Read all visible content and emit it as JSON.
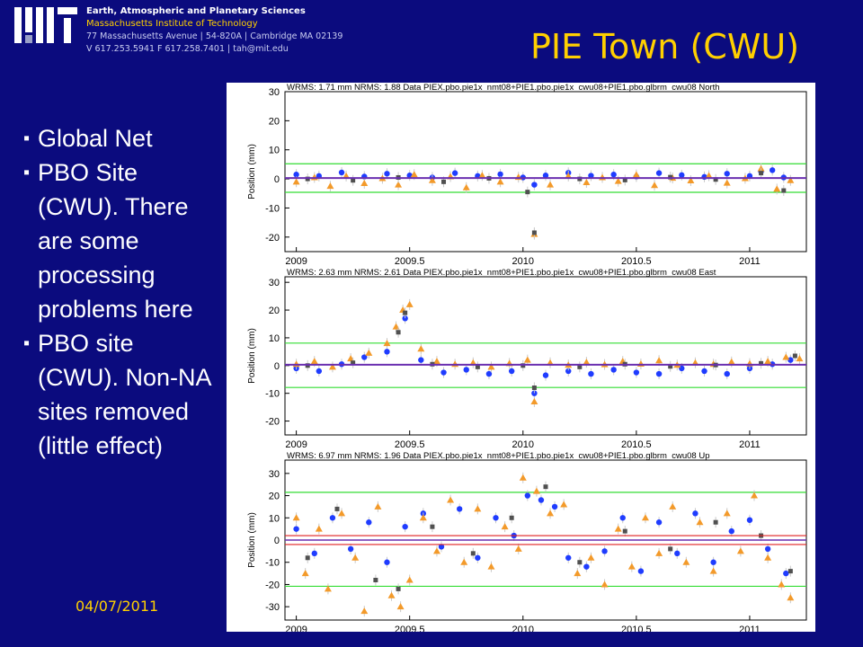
{
  "header": {
    "org": "Earth, Atmospheric and Planetary Sciences",
    "institute": "Massachusetts Institute of Technology",
    "address": "77 Massachusetts Avenue | 54-820A | Cambridge MA 02139",
    "contact": "V 617.253.5941 F 617.258.7401 | tah@mit.edu"
  },
  "title": "PIE Town (CWU)",
  "bullets": [
    "Global Net",
    "PBO Site (CWU). There are some processing problems here",
    "PBO site (CWU). Non-NA sites removed (little effect)"
  ],
  "date": "04/07/2011",
  "colors": {
    "background": "#0b0b7e",
    "title": "#ffd000",
    "series_orange": "#f39a2a",
    "series_blue": "#1f3cff",
    "series_gray": "#505050",
    "band_green": "#33dd33",
    "mean_purple": "#6a2fb0"
  },
  "chart_data": [
    {
      "type": "scatter",
      "header": "WRMS:   1.71 mm NRMS: 1.88 Data PIEX.pbo.pie1x_nmt08+PIE1.pbo.pie1x_cwu08+PIE1.pbo.glbrm_cwu08 North",
      "ylabel": "Position (mm)",
      "xlim": [
        2008.95,
        2011.25
      ],
      "ylim": [
        -25,
        30
      ],
      "yticks": [
        30,
        20,
        10,
        0,
        -10,
        -20
      ],
      "xticks": [
        2009,
        2009.5,
        2010,
        2010.5,
        2011
      ],
      "xtick_labels": [
        "2009",
        "2009.5",
        "2010",
        "2010.5",
        "2011"
      ],
      "band": [
        -4.6,
        5.2
      ],
      "mean": 0.3,
      "series": [
        {
          "color": "blue",
          "x": [
            2009.0,
            2009.1,
            2009.2,
            2009.3,
            2009.4,
            2009.5,
            2009.6,
            2009.7,
            2009.8,
            2009.9,
            2010.0,
            2010.05,
            2010.1,
            2010.2,
            2010.3,
            2010.4,
            2010.5,
            2010.6,
            2010.7,
            2010.8,
            2010.9,
            2011.0,
            2011.05,
            2011.1,
            2011.15
          ],
          "y": [
            1.5,
            1.0,
            2.2,
            0.8,
            1.8,
            1.2,
            0.5,
            2.0,
            1.0,
            1.6,
            0.5,
            -2.0,
            1.2,
            2.1,
            1.1,
            1.5,
            0.8,
            2.0,
            1.3,
            0.7,
            1.8,
            1.0,
            2.5,
            3.0,
            0.5
          ]
        },
        {
          "color": "orange",
          "x": [
            2009.0,
            2009.08,
            2009.15,
            2009.22,
            2009.3,
            2009.38,
            2009.45,
            2009.52,
            2009.6,
            2009.68,
            2009.75,
            2009.82,
            2009.9,
            2009.98,
            2010.05,
            2010.12,
            2010.2,
            2010.28,
            2010.35,
            2010.42,
            2010.5,
            2010.58,
            2010.66,
            2010.74,
            2010.82,
            2010.9,
            2010.98,
            2011.05,
            2011.12,
            2011.18
          ],
          "y": [
            -1.0,
            0.5,
            -2.5,
            1.0,
            -1.5,
            0.2,
            -2.0,
            1.5,
            -0.5,
            0.8,
            -3.0,
            1.2,
            -1.0,
            0.6,
            -19.0,
            -2.0,
            1.0,
            -1.2,
            0.5,
            -0.8,
            1.4,
            -2.2,
            0.3,
            -0.6,
            1.1,
            -1.4,
            0.2,
            3.5,
            -3.5,
            -0.5
          ]
        },
        {
          "color": "gray",
          "x": [
            2009.05,
            2009.25,
            2009.45,
            2009.65,
            2009.85,
            2010.02,
            2010.05,
            2010.25,
            2010.45,
            2010.65,
            2010.85,
            2011.05,
            2011.15
          ],
          "y": [
            0.0,
            -0.5,
            0.5,
            -1.0,
            0.2,
            -4.5,
            -18.5,
            0.0,
            -0.4,
            0.6,
            -0.2,
            2.0,
            -4.0
          ]
        }
      ]
    },
    {
      "type": "scatter",
      "header": "WRMS:   2.63 mm NRMS: 2.61 Data PIEX.pbo.pie1x_nmt08+PIE1.pbo.pie1x_cwu08+PIE1.pbo.glbrm_cwu08 East",
      "ylabel": "Position (mm)",
      "xlim": [
        2008.95,
        2011.25
      ],
      "ylim": [
        -25,
        32
      ],
      "yticks": [
        30,
        20,
        10,
        0,
        -10,
        -20
      ],
      "xticks": [
        2009,
        2009.5,
        2010,
        2010.5,
        2011
      ],
      "xtick_labels": [
        "2009",
        "2009.5",
        "2010",
        "2010.5",
        "2011"
      ],
      "band": [
        -7.9,
        8.1
      ],
      "mean": 0.3,
      "series": [
        {
          "color": "blue",
          "x": [
            2009.0,
            2009.1,
            2009.2,
            2009.3,
            2009.4,
            2009.48,
            2009.55,
            2009.65,
            2009.75,
            2009.85,
            2009.95,
            2010.05,
            2010.1,
            2010.2,
            2010.3,
            2010.4,
            2010.5,
            2010.6,
            2010.7,
            2010.8,
            2010.9,
            2011.0,
            2011.1,
            2011.18
          ],
          "y": [
            -1.0,
            -2.0,
            0.5,
            3.0,
            5.0,
            17.0,
            2.0,
            -2.5,
            -1.5,
            -3.0,
            -2.0,
            -10.0,
            -3.5,
            -2.0,
            -3.0,
            -1.5,
            -2.5,
            -3.0,
            -1.0,
            -2.0,
            -3.0,
            -1.0,
            0.5,
            2.0
          ]
        },
        {
          "color": "orange",
          "x": [
            2009.0,
            2009.08,
            2009.16,
            2009.24,
            2009.32,
            2009.4,
            2009.44,
            2009.47,
            2009.5,
            2009.55,
            2009.62,
            2009.7,
            2009.78,
            2009.86,
            2009.94,
            2010.02,
            2010.05,
            2010.12,
            2010.2,
            2010.28,
            2010.36,
            2010.44,
            2010.52,
            2010.6,
            2010.68,
            2010.76,
            2010.84,
            2010.92,
            2011.0,
            2011.08,
            2011.16,
            2011.22
          ],
          "y": [
            0.5,
            1.5,
            -0.5,
            2.5,
            4.5,
            8.0,
            14.0,
            20.0,
            22.0,
            6.0,
            1.5,
            0.5,
            1.0,
            -0.5,
            0.8,
            2.0,
            -13.0,
            1.0,
            0.2,
            1.2,
            0.4,
            1.5,
            0.6,
            1.8,
            0.2,
            1.0,
            0.5,
            1.3,
            0.7,
            1.5,
            3.0,
            2.5
          ]
        },
        {
          "color": "gray",
          "x": [
            2009.05,
            2009.25,
            2009.45,
            2009.48,
            2009.6,
            2009.8,
            2010.0,
            2010.05,
            2010.25,
            2010.45,
            2010.65,
            2010.85,
            2011.05,
            2011.2
          ],
          "y": [
            0.0,
            1.0,
            12.0,
            19.0,
            0.5,
            -0.5,
            0.0,
            -8.0,
            -0.5,
            0.5,
            -0.3,
            0.2,
            0.8,
            3.5
          ]
        }
      ]
    },
    {
      "type": "scatter",
      "header": "WRMS:   6.97 mm NRMS: 1.96 Data PIEX.pbo.pie1x_nmt08+PIE1.pbo.pie1x_cwu08+PIE1.pbo.glbrm_cwu08 Up",
      "ylabel": "Position (mm)",
      "xlim": [
        2008.95,
        2011.25
      ],
      "ylim": [
        -36,
        36
      ],
      "yticks": [
        30,
        20,
        10,
        0,
        -10,
        -20,
        -30
      ],
      "xticks": [
        2009,
        2009.5,
        2010,
        2010.5,
        2011
      ],
      "xtick_labels": [
        "2009",
        "2009.5",
        "2010",
        "2010.5",
        "2011"
      ],
      "band": [
        -20.8,
        21.5
      ],
      "mean": 0.0,
      "mean_lines": [
        2.0,
        -2.0
      ],
      "series": [
        {
          "color": "blue",
          "x": [
            2009.0,
            2009.08,
            2009.16,
            2009.24,
            2009.32,
            2009.4,
            2009.48,
            2009.56,
            2009.64,
            2009.72,
            2009.8,
            2009.88,
            2009.96,
            2010.02,
            2010.08,
            2010.14,
            2010.2,
            2010.28,
            2010.36,
            2010.44,
            2010.52,
            2010.6,
            2010.68,
            2010.76,
            2010.84,
            2010.92,
            2011.0,
            2011.08,
            2011.16
          ],
          "y": [
            5.0,
            -6.0,
            10.0,
            -4.0,
            8.0,
            -10.0,
            6.0,
            12.0,
            -3.0,
            14.0,
            -8.0,
            10.0,
            2.0,
            20.0,
            18.0,
            15.0,
            -8.0,
            -12.0,
            -5.0,
            10.0,
            -14.0,
            8.0,
            -6.0,
            12.0,
            -10.0,
            4.0,
            9.0,
            -4.0,
            -15.0
          ]
        },
        {
          "color": "orange",
          "x": [
            2009.0,
            2009.04,
            2009.1,
            2009.14,
            2009.2,
            2009.26,
            2009.3,
            2009.36,
            2009.42,
            2009.46,
            2009.5,
            2009.56,
            2009.62,
            2009.68,
            2009.74,
            2009.8,
            2009.86,
            2009.92,
            2009.98,
            2010.0,
            2010.06,
            2010.12,
            2010.18,
            2010.24,
            2010.3,
            2010.36,
            2010.42,
            2010.48,
            2010.54,
            2010.6,
            2010.66,
            2010.72,
            2010.78,
            2010.84,
            2010.9,
            2010.96,
            2011.02,
            2011.08,
            2011.14,
            2011.18
          ],
          "y": [
            10.0,
            -15.0,
            5.0,
            -22.0,
            12.0,
            -8.0,
            -32.0,
            15.0,
            -25.0,
            -30.0,
            -18.0,
            10.0,
            -5.0,
            18.0,
            -10.0,
            14.0,
            -12.0,
            6.0,
            -4.0,
            28.0,
            22.0,
            12.0,
            16.0,
            -15.0,
            -8.0,
            -20.0,
            5.0,
            -12.0,
            10.0,
            -6.0,
            15.0,
            -10.0,
            8.0,
            -14.0,
            12.0,
            -5.0,
            20.0,
            -8.0,
            -20.0,
            -26.0
          ]
        },
        {
          "color": "gray",
          "x": [
            2009.05,
            2009.18,
            2009.35,
            2009.45,
            2009.6,
            2009.78,
            2009.95,
            2010.1,
            2010.25,
            2010.45,
            2010.65,
            2010.85,
            2011.05,
            2011.18
          ],
          "y": [
            -8.0,
            14.0,
            -18.0,
            -22.0,
            6.0,
            -6.0,
            10.0,
            24.0,
            -10.0,
            4.0,
            -4.0,
            8.0,
            2.0,
            -14.0
          ]
        }
      ]
    }
  ]
}
